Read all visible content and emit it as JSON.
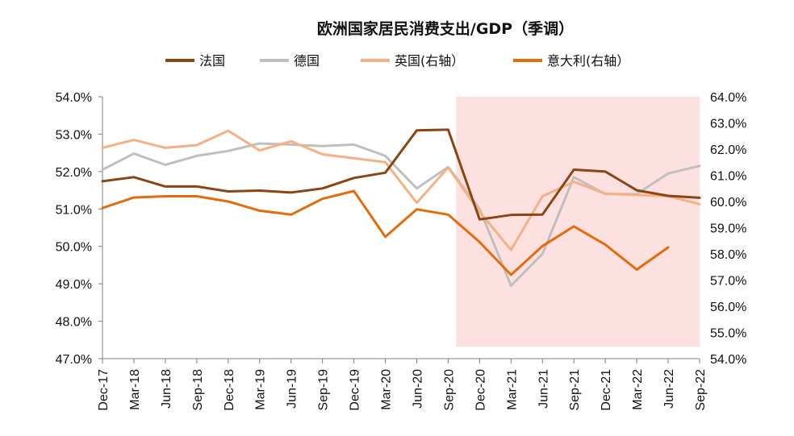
{
  "chart_data": {
    "type": "line",
    "title": "欧洲国家居民消费支出/GDP（季调）",
    "categories": [
      "Dec-17",
      "Mar-18",
      "Jun-18",
      "Sep-18",
      "Dec-18",
      "Mar-19",
      "Jun-19",
      "Sep-19",
      "Dec-19",
      "Mar-20",
      "Jun-20",
      "Sep-20",
      "Dec-20",
      "Mar-21",
      "Jun-21",
      "Sep-21",
      "Dec-21",
      "Mar-22",
      "Jun-22",
      "Sep-22"
    ],
    "y_left": {
      "ylim": [
        47.0,
        54.0
      ],
      "ticks": [
        "47.0%",
        "48.0%",
        "49.0%",
        "50.0%",
        "51.0%",
        "52.0%",
        "53.0%",
        "54.0%"
      ]
    },
    "y_right": {
      "ylim": [
        54.0,
        64.0
      ],
      "ticks": [
        "54.0%",
        "55.0%",
        "56.0%",
        "57.0%",
        "58.0%",
        "59.0%",
        "60.0%",
        "61.0%",
        "62.0%",
        "63.0%",
        "64.0%"
      ]
    },
    "shaded_region": {
      "from_index": 11.25,
      "to_index": 19,
      "color": "#fde0e0"
    },
    "series": [
      {
        "name": "法国",
        "axis": "left",
        "color": "#8b4513",
        "values": [
          51.74,
          51.85,
          51.6,
          51.6,
          51.47,
          51.49,
          51.44,
          51.55,
          51.83,
          51.97,
          53.1,
          53.12,
          50.72,
          50.84,
          50.85,
          52.05,
          52.0,
          51.5,
          51.35,
          51.3
        ]
      },
      {
        "name": "德国",
        "axis": "left",
        "color": "#bfbfbf",
        "values": [
          52.05,
          52.48,
          52.18,
          52.42,
          52.55,
          52.75,
          52.72,
          52.68,
          52.72,
          52.42,
          51.55,
          52.12,
          51.0,
          48.95,
          49.8,
          51.85,
          51.4,
          51.4,
          51.95,
          52.15
        ]
      },
      {
        "name": "英国(右轴）",
        "axis": "right",
        "color": "#f5b183",
        "values": [
          62.05,
          62.35,
          62.05,
          62.15,
          62.7,
          61.95,
          62.3,
          61.8,
          61.65,
          61.5,
          59.95,
          61.3,
          59.6,
          58.15,
          60.2,
          60.75,
          60.3,
          60.25,
          60.2,
          59.9
        ]
      },
      {
        "name": "意大利(右轴）",
        "axis": "right",
        "color": "#e46c0a",
        "values": [
          59.75,
          60.15,
          60.2,
          60.2,
          60.0,
          59.65,
          59.5,
          60.1,
          60.4,
          58.65,
          59.7,
          59.5,
          58.45,
          57.2,
          58.3,
          59.05,
          58.35,
          57.4,
          58.25,
          null
        ]
      }
    ]
  }
}
